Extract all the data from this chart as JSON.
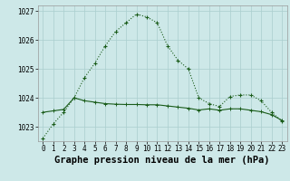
{
  "series1": [
    1022.6,
    1023.1,
    1023.5,
    1024.0,
    1024.7,
    1025.2,
    1025.8,
    1026.3,
    1026.6,
    1026.9,
    1026.8,
    1026.6,
    1025.8,
    1025.3,
    1025.0,
    1024.0,
    1023.8,
    1023.7,
    1024.05,
    1024.1,
    1024.1,
    1023.9,
    1023.5,
    1023.2
  ],
  "series2": [
    1023.5,
    1023.55,
    1023.6,
    1024.0,
    1023.9,
    1023.85,
    1023.8,
    1023.78,
    1023.77,
    1023.77,
    1023.76,
    1023.76,
    1023.72,
    1023.68,
    1023.64,
    1023.58,
    1023.62,
    1023.57,
    1023.62,
    1023.62,
    1023.57,
    1023.52,
    1023.42,
    1023.22
  ],
  "x": [
    0,
    1,
    2,
    3,
    4,
    5,
    6,
    7,
    8,
    9,
    10,
    11,
    12,
    13,
    14,
    15,
    16,
    17,
    18,
    19,
    20,
    21,
    22,
    23
  ],
  "ylim": [
    1022.5,
    1027.2
  ],
  "yticks": [
    1023,
    1024,
    1025,
    1026,
    1027
  ],
  "xticks": [
    0,
    1,
    2,
    3,
    4,
    5,
    6,
    7,
    8,
    9,
    10,
    11,
    12,
    13,
    14,
    15,
    16,
    17,
    18,
    19,
    20,
    21,
    22,
    23
  ],
  "xlabel": "Graphe pression niveau de la mer (hPa)",
  "bg_color": "#cde8e8",
  "line_color": "#1a5c1a",
  "grid_color": "#aacece",
  "tick_fontsize": 5.5,
  "xlabel_fontsize": 7.5
}
